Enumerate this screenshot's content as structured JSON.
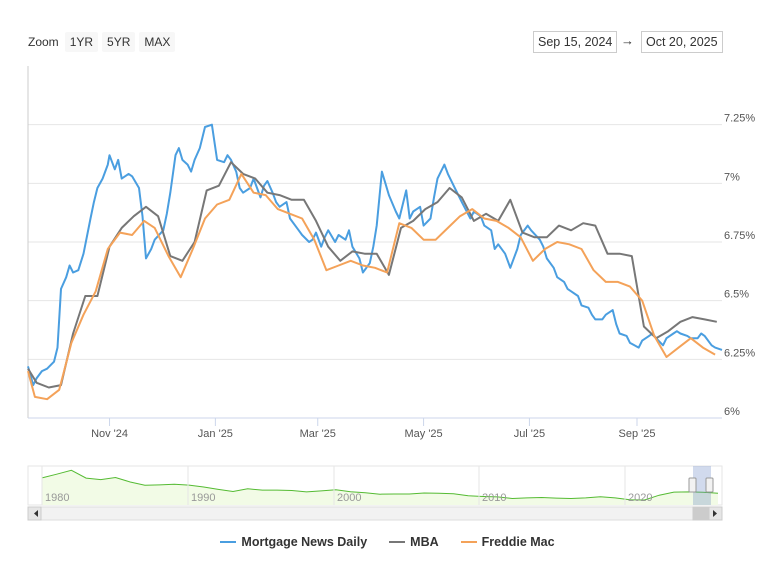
{
  "toolbar": {
    "zoom_label": "Zoom",
    "zoom_buttons": [
      "1YR",
      "5YR",
      "MAX"
    ],
    "range_from": "Sep 15, 2024",
    "range_arrow": "→",
    "range_to": "Oct 20, 2025"
  },
  "chart_data": {
    "type": "line",
    "title": "",
    "xlabel": "",
    "ylabel": "",
    "x_range": [
      "2024-09-15",
      "2025-10-20"
    ],
    "ylim": [
      6.0,
      7.5
    ],
    "y_ticks": [
      "6%",
      "6.25%",
      "6.5%",
      "6.75%",
      "7%",
      "7.25%"
    ],
    "x_ticks": [
      "Nov '24",
      "Jan '25",
      "Mar '25",
      "May '25",
      "Jul '25",
      "Sep '25"
    ],
    "grid": true,
    "legend_position": "bottom",
    "series": [
      {
        "name": "Mortgage News Daily",
        "color": "#4a9ee0",
        "x": [
          "2024-09-15",
          "2024-09-18",
          "2024-09-20",
          "2024-09-23",
          "2024-09-26",
          "2024-09-30",
          "2024-10-02",
          "2024-10-04",
          "2024-10-07",
          "2024-10-09",
          "2024-10-11",
          "2024-10-14",
          "2024-10-17",
          "2024-10-21",
          "2024-10-23",
          "2024-10-25",
          "2024-10-28",
          "2024-10-31",
          "2024-11-01",
          "2024-11-04",
          "2024-11-06",
          "2024-11-08",
          "2024-11-12",
          "2024-11-14",
          "2024-11-18",
          "2024-11-20",
          "2024-11-22",
          "2024-11-25",
          "2024-11-27",
          "2024-12-02",
          "2024-12-04",
          "2024-12-06",
          "2024-12-09",
          "2024-12-11",
          "2024-12-13",
          "2024-12-16",
          "2024-12-18",
          "2024-12-20",
          "2024-12-23",
          "2024-12-26",
          "2024-12-30",
          "2025-01-02",
          "2025-01-06",
          "2025-01-08",
          "2025-01-10",
          "2025-01-13",
          "2025-01-15",
          "2025-01-17",
          "2025-01-21",
          "2025-01-23",
          "2025-01-27",
          "2025-01-29",
          "2025-01-31",
          "2025-02-03",
          "2025-02-05",
          "2025-02-07",
          "2025-02-11",
          "2025-02-13",
          "2025-02-18",
          "2025-02-20",
          "2025-02-24",
          "2025-02-26",
          "2025-02-28",
          "2025-03-03",
          "2025-03-05",
          "2025-03-07",
          "2025-03-11",
          "2025-03-13",
          "2025-03-17",
          "2025-03-19",
          "2025-03-21",
          "2025-03-25",
          "2025-03-27",
          "2025-03-31",
          "2025-04-02",
          "2025-04-04",
          "2025-04-07",
          "2025-04-09",
          "2025-04-11",
          "2025-04-15",
          "2025-04-17",
          "2025-04-21",
          "2025-04-23",
          "2025-04-25",
          "2025-04-29",
          "2025-05-01",
          "2025-05-05",
          "2025-05-07",
          "2025-05-09",
          "2025-05-13",
          "2025-05-15",
          "2025-05-19",
          "2025-05-21",
          "2025-05-23",
          "2025-05-28",
          "2025-05-30",
          "2025-06-03",
          "2025-06-05",
          "2025-06-09",
          "2025-06-11",
          "2025-06-13",
          "2025-06-17",
          "2025-06-20",
          "2025-06-24",
          "2025-06-26",
          "2025-06-30",
          "2025-07-02",
          "2025-07-07",
          "2025-07-09",
          "2025-07-11",
          "2025-07-15",
          "2025-07-17",
          "2025-07-21",
          "2025-07-23",
          "2025-07-25",
          "2025-07-29",
          "2025-07-31",
          "2025-08-04",
          "2025-08-06",
          "2025-08-08",
          "2025-08-12",
          "2025-08-14",
          "2025-08-18",
          "2025-08-20",
          "2025-08-22",
          "2025-08-26",
          "2025-08-28",
          "2025-09-02",
          "2025-09-04",
          "2025-09-08",
          "2025-09-10",
          "2025-09-12",
          "2025-09-16",
          "2025-09-18",
          "2025-09-22",
          "2025-09-24",
          "2025-09-26",
          "2025-09-30",
          "2025-10-02",
          "2025-10-06",
          "2025-10-08",
          "2025-10-10",
          "2025-10-14",
          "2025-10-16",
          "2025-10-20"
        ],
        "values": [
          6.22,
          6.14,
          6.17,
          6.2,
          6.21,
          6.24,
          6.3,
          6.55,
          6.6,
          6.65,
          6.62,
          6.63,
          6.7,
          6.85,
          6.92,
          6.98,
          7.02,
          7.08,
          7.12,
          7.06,
          7.1,
          7.02,
          7.04,
          7.03,
          6.98,
          6.86,
          6.68,
          6.72,
          6.76,
          6.8,
          6.87,
          6.96,
          7.12,
          7.15,
          7.1,
          7.08,
          7.05,
          7.1,
          7.15,
          7.24,
          7.25,
          7.1,
          7.09,
          7.12,
          7.1,
          7.05,
          6.98,
          6.96,
          6.98,
          7.02,
          6.94,
          6.99,
          7.01,
          6.96,
          6.92,
          6.9,
          6.92,
          6.85,
          6.8,
          6.78,
          6.75,
          6.76,
          6.79,
          6.73,
          6.77,
          6.8,
          6.75,
          6.78,
          6.76,
          6.8,
          6.73,
          6.68,
          6.62,
          6.66,
          6.73,
          6.82,
          7.05,
          7.0,
          6.95,
          6.88,
          6.85,
          6.97,
          6.85,
          6.88,
          6.9,
          6.82,
          6.85,
          6.94,
          7.02,
          7.08,
          7.04,
          6.98,
          6.95,
          6.92,
          6.85,
          6.88,
          6.86,
          6.82,
          6.8,
          6.72,
          6.74,
          6.7,
          6.64,
          6.72,
          6.78,
          6.82,
          6.8,
          6.76,
          6.73,
          6.68,
          6.64,
          6.6,
          6.58,
          6.55,
          6.54,
          6.52,
          6.48,
          6.47,
          6.44,
          6.42,
          6.42,
          6.44,
          6.46,
          6.4,
          6.36,
          6.35,
          6.32,
          6.3,
          6.33,
          6.35,
          6.36,
          6.34,
          6.31,
          6.34,
          6.36,
          6.37,
          6.36,
          6.35,
          6.34,
          6.34,
          6.36,
          6.35,
          6.31,
          6.3,
          6.29
        ]
      },
      {
        "name": "MBA",
        "color": "#777777",
        "x": [
          "2024-09-15",
          "2024-09-20",
          "2024-09-27",
          "2024-10-04",
          "2024-10-11",
          "2024-10-18",
          "2024-10-25",
          "2024-11-01",
          "2024-11-08",
          "2024-11-15",
          "2024-11-22",
          "2024-11-29",
          "2024-12-06",
          "2024-12-13",
          "2024-12-20",
          "2024-12-27",
          "2025-01-03",
          "2025-01-10",
          "2025-01-17",
          "2025-01-24",
          "2025-01-31",
          "2025-02-07",
          "2025-02-14",
          "2025-02-21",
          "2025-02-28",
          "2025-03-07",
          "2025-03-14",
          "2025-03-21",
          "2025-03-28",
          "2025-04-04",
          "2025-04-11",
          "2025-04-18",
          "2025-04-25",
          "2025-05-02",
          "2025-05-09",
          "2025-05-16",
          "2025-05-23",
          "2025-05-30",
          "2025-06-06",
          "2025-06-13",
          "2025-06-20",
          "2025-06-27",
          "2025-07-04",
          "2025-07-11",
          "2025-07-18",
          "2025-07-25",
          "2025-08-01",
          "2025-08-08",
          "2025-08-15",
          "2025-08-22",
          "2025-08-29",
          "2025-09-05",
          "2025-09-12",
          "2025-09-19",
          "2025-09-26",
          "2025-10-03",
          "2025-10-10",
          "2025-10-17"
        ],
        "values": [
          6.21,
          6.15,
          6.13,
          6.14,
          6.36,
          6.52,
          6.52,
          6.73,
          6.81,
          6.86,
          6.9,
          6.86,
          6.69,
          6.67,
          6.75,
          6.97,
          6.99,
          7.09,
          7.04,
          7.02,
          6.96,
          6.95,
          6.93,
          6.93,
          6.84,
          6.73,
          6.67,
          6.71,
          6.7,
          6.7,
          6.61,
          6.81,
          6.84,
          6.89,
          6.92,
          6.98,
          6.94,
          6.84,
          6.87,
          6.84,
          6.93,
          6.79,
          6.77,
          6.77,
          6.82,
          6.8,
          6.83,
          6.82,
          6.7,
          6.7,
          6.69,
          6.39,
          6.34,
          6.37,
          6.41,
          6.43,
          6.42,
          6.41
        ]
      },
      {
        "name": "Freddie Mac",
        "color": "#f4a259",
        "x": [
          "2024-09-15",
          "2024-09-19",
          "2024-09-26",
          "2024-10-03",
          "2024-10-10",
          "2024-10-17",
          "2024-10-24",
          "2024-10-31",
          "2024-11-07",
          "2024-11-14",
          "2024-11-21",
          "2024-11-27",
          "2024-12-05",
          "2024-12-12",
          "2024-12-19",
          "2024-12-26",
          "2025-01-02",
          "2025-01-09",
          "2025-01-16",
          "2025-01-23",
          "2025-01-30",
          "2025-02-06",
          "2025-02-13",
          "2025-02-20",
          "2025-02-27",
          "2025-03-06",
          "2025-03-13",
          "2025-03-20",
          "2025-03-27",
          "2025-04-03",
          "2025-04-10",
          "2025-04-17",
          "2025-04-24",
          "2025-05-01",
          "2025-05-08",
          "2025-05-15",
          "2025-05-22",
          "2025-05-29",
          "2025-06-05",
          "2025-06-12",
          "2025-06-19",
          "2025-06-26",
          "2025-07-03",
          "2025-07-10",
          "2025-07-17",
          "2025-07-24",
          "2025-07-31",
          "2025-08-07",
          "2025-08-14",
          "2025-08-21",
          "2025-08-28",
          "2025-09-04",
          "2025-09-11",
          "2025-09-18",
          "2025-09-25",
          "2025-10-02",
          "2025-10-09",
          "2025-10-16"
        ],
        "values": [
          6.2,
          6.09,
          6.08,
          6.12,
          6.32,
          6.44,
          6.54,
          6.72,
          6.79,
          6.78,
          6.84,
          6.81,
          6.69,
          6.6,
          6.72,
          6.85,
          6.91,
          6.93,
          7.04,
          6.96,
          6.95,
          6.89,
          6.87,
          6.85,
          6.76,
          6.63,
          6.65,
          6.67,
          6.65,
          6.64,
          6.62,
          6.83,
          6.81,
          6.76,
          6.76,
          6.81,
          6.86,
          6.89,
          6.85,
          6.84,
          6.81,
          6.77,
          6.67,
          6.72,
          6.75,
          6.74,
          6.72,
          6.63,
          6.58,
          6.58,
          6.56,
          6.5,
          6.35,
          6.26,
          6.3,
          6.34,
          6.3,
          6.27
        ]
      }
    ]
  },
  "navigator": {
    "year_labels": [
      "1980",
      "1990",
      "2000",
      "2010",
      "2020"
    ],
    "series_color": "#55bb33",
    "values": [
      13.7,
      15.5,
      17.4,
      13.6,
      12.9,
      13.9,
      11.7,
      10.1,
      10.3,
      10.6,
      10.2,
      9.3,
      8.1,
      7.1,
      8.4,
      7.8,
      7.8,
      7.6,
      6.9,
      7.4,
      8.0,
      7.0,
      6.5,
      5.8,
      5.9,
      5.9,
      6.4,
      6.3,
      6.0,
      5.0,
      4.7,
      4.5,
      3.7,
      4.0,
      4.2,
      3.9,
      3.7,
      4.0,
      4.6,
      4.0,
      3.1,
      3.0,
      5.3,
      6.8,
      6.9,
      6.7,
      6.3
    ]
  },
  "legend": [
    {
      "label": "Mortgage News Daily",
      "color": "#4a9ee0"
    },
    {
      "label": "MBA",
      "color": "#777777"
    },
    {
      "label": "Freddie Mac",
      "color": "#f4a259"
    }
  ]
}
